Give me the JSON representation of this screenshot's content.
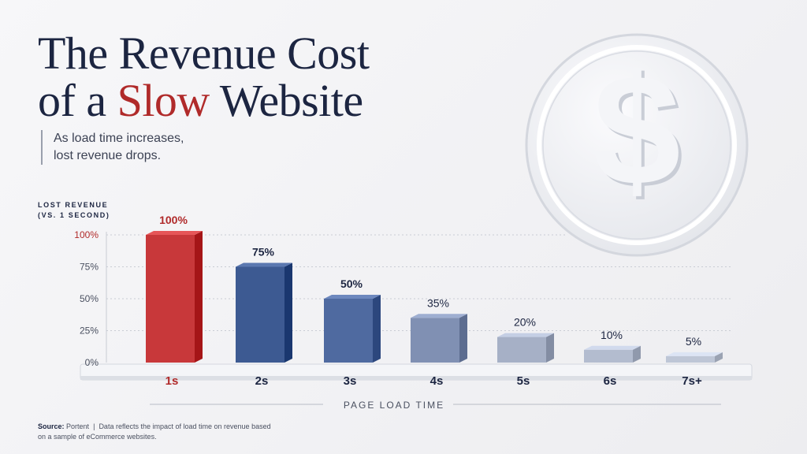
{
  "header": {
    "title_line1": "The Revenue Cost",
    "title_prefix": "of a ",
    "title_accent": "Slow",
    "title_suffix": " Website",
    "subtitle_line1": "As load time increases,",
    "subtitle_line2": "lost revenue drops."
  },
  "footer": {
    "source_label": "Source:",
    "source_name": "Portent",
    "separator": "|",
    "note_line1": "Data reflects the impact of load time on revenue",
    "note_line2": "based on a sample of eCommerce websites."
  },
  "icons": {
    "coin": "dollar-coin-icon"
  },
  "colors": {
    "title": "#1c2541",
    "accent": "#b02a2a",
    "bar_1s": "#c8383a",
    "bar_2s": "#3d5a92",
    "bar_3s": "#4f6aa0",
    "bar_4s": "#8090b3",
    "bar_5s": "#a6b0c6",
    "bar_6s": "#b3bccf",
    "bar_7s": "#bec6d6"
  },
  "chart_data": {
    "type": "bar",
    "ylabel_line1": "LOST REVENUE",
    "ylabel_line2": "(VS. 1 SECOND)",
    "xlabel": "PAGE LOAD TIME",
    "categories": [
      "1s",
      "2s",
      "3s",
      "4s",
      "5s",
      "6s",
      "7s+"
    ],
    "values": [
      100,
      75,
      50,
      35,
      20,
      10,
      5
    ],
    "data_labels": [
      "100%",
      "75%",
      "50%",
      "35%",
      "20%",
      "10%",
      "5%"
    ],
    "yticks": [
      "0%",
      "25%",
      "50%",
      "75%",
      "100%"
    ],
    "ytick_values": [
      0,
      25,
      50,
      75,
      100
    ],
    "ylim": [
      0,
      100
    ],
    "grid": true,
    "highlight": "1s"
  }
}
